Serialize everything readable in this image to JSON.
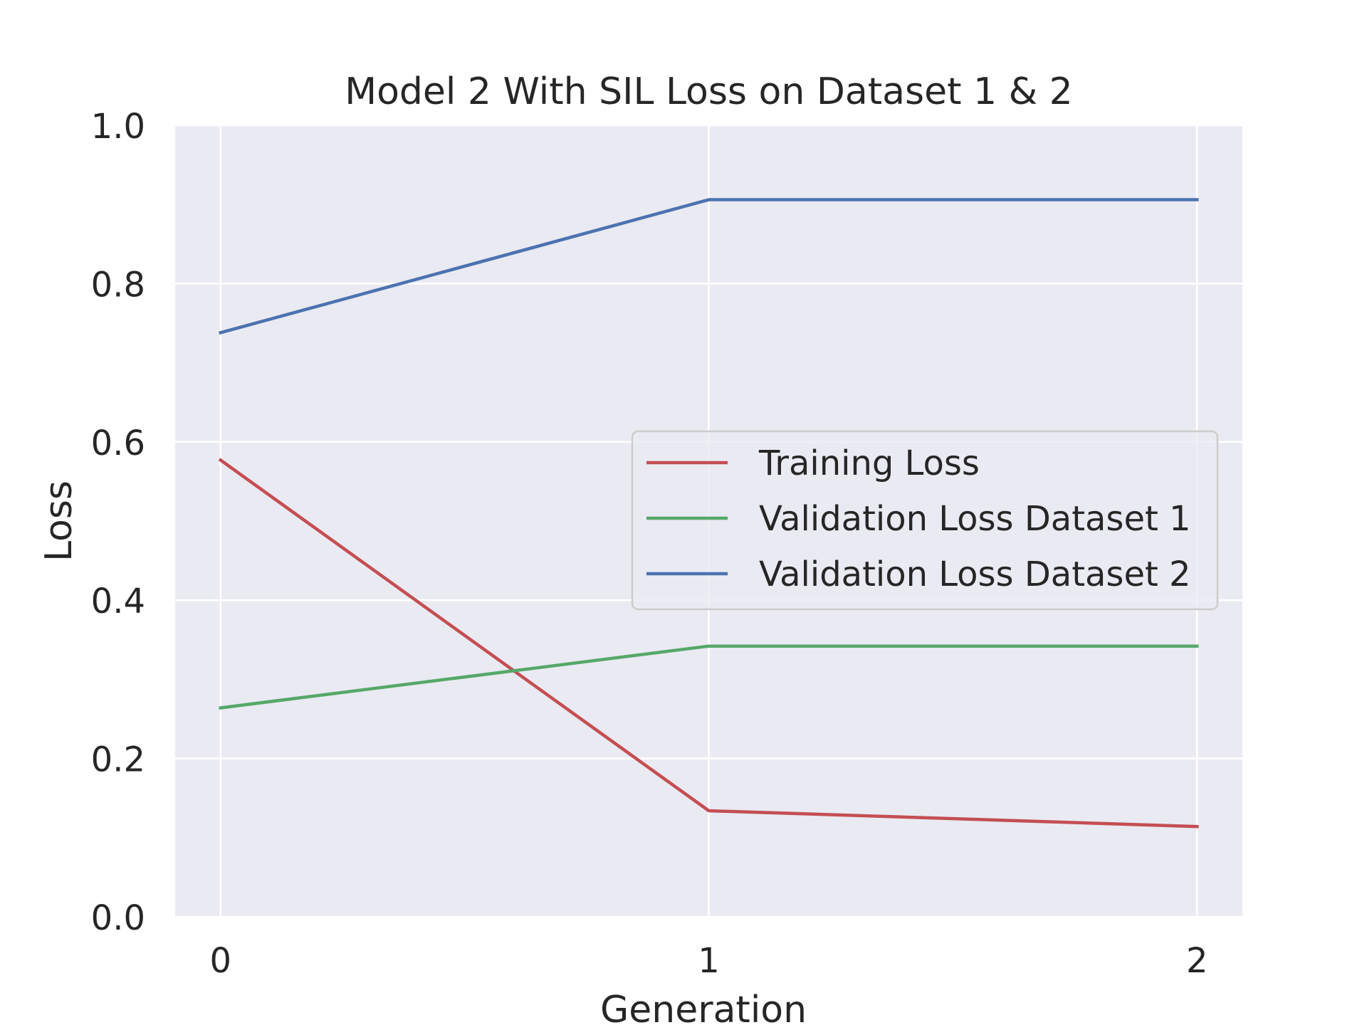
{
  "chart_data": {
    "type": "line",
    "title": "Model 2 With SIL Loss on Dataset 1 & 2",
    "xlabel": "Generation",
    "ylabel": "Loss",
    "x": [
      0,
      1,
      2
    ],
    "xticks": [
      "0",
      "1",
      "2"
    ],
    "yticks": [
      "0.0",
      "0.2",
      "0.4",
      "0.6",
      "0.8",
      "1.0"
    ],
    "xlim": [
      -0.093,
      2.093
    ],
    "ylim": [
      0,
      1
    ],
    "grid": true,
    "legend": "center-right",
    "series": [
      {
        "name": "Training Loss",
        "values": [
          0.577,
          0.134,
          0.114
        ],
        "color": "#c44e52"
      },
      {
        "name": "Validation Loss Dataset 1",
        "values": [
          0.264,
          0.342,
          0.342
        ],
        "color": "#55a868"
      },
      {
        "name": "Validation Loss Dataset 2",
        "values": [
          0.738,
          0.906,
          0.906
        ],
        "color": "#4c72b0"
      }
    ],
    "colors": {
      "plot_background": "#eaeaf2",
      "grid": "#ffffff",
      "text": "#262626"
    }
  }
}
